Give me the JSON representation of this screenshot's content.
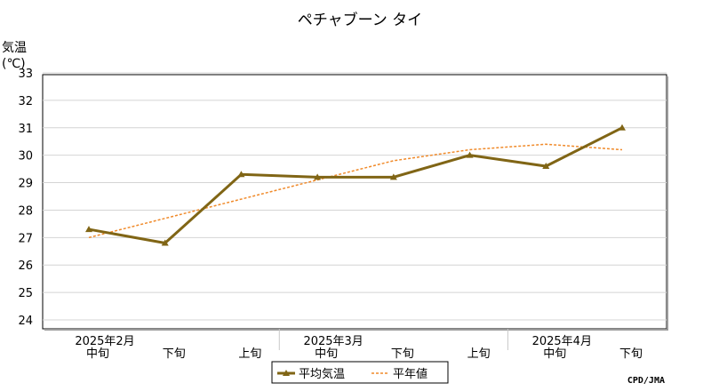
{
  "chart_data": {
    "type": "line",
    "title": "ペチャブーン タイ",
    "ylabel_line1": "気温",
    "ylabel_line2": "(℃)",
    "ylim": [
      24,
      33
    ],
    "yticks": [
      "24",
      "25",
      "26",
      "27",
      "28",
      "29",
      "30",
      "31",
      "32",
      "33"
    ],
    "categories": [
      "中旬",
      "下旬",
      "上旬",
      "中旬",
      "下旬",
      "上旬",
      "中旬",
      "下旬"
    ],
    "month_labels": [
      "2025年2月",
      "2025年3月",
      "2025年4月"
    ],
    "series": [
      {
        "name": "平均気温",
        "color": "#806515",
        "values": [
          27.3,
          26.8,
          29.3,
          29.2,
          29.2,
          30.0,
          29.6,
          31.0
        ]
      },
      {
        "name": "平年値",
        "color": "#f08a2a",
        "values": [
          27.0,
          27.7,
          28.4,
          29.1,
          29.8,
          30.2,
          30.4,
          30.2
        ]
      }
    ],
    "grid": true,
    "legend_position": "bottom-center",
    "credit": "CPD/JMA"
  }
}
